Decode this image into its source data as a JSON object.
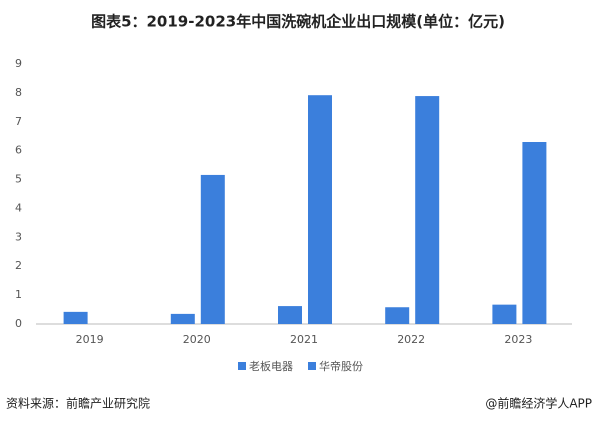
{
  "chart_data": {
    "type": "bar",
    "title": "图表5：2019-2023年中国洗碗机企业出口规模(单位：亿元)",
    "categories": [
      "2019",
      "2020",
      "2021",
      "2022",
      "2023"
    ],
    "series": [
      {
        "name": "老板电器",
        "color": "#3b7fdc",
        "values": [
          0.42,
          0.35,
          0.62,
          0.58,
          0.67
        ]
      },
      {
        "name": "华帝股份",
        "color": "#3b7fdc",
        "values": [
          null,
          5.16,
          7.92,
          7.89,
          6.3
        ]
      }
    ],
    "ylim": [
      0,
      9
    ],
    "yticks": [
      0,
      1,
      2,
      3,
      4,
      5,
      6,
      7,
      8,
      9
    ],
    "grid": false,
    "source": "资料来源：前瞻产业研究院",
    "credit": "@前瞻经济学人APP"
  }
}
